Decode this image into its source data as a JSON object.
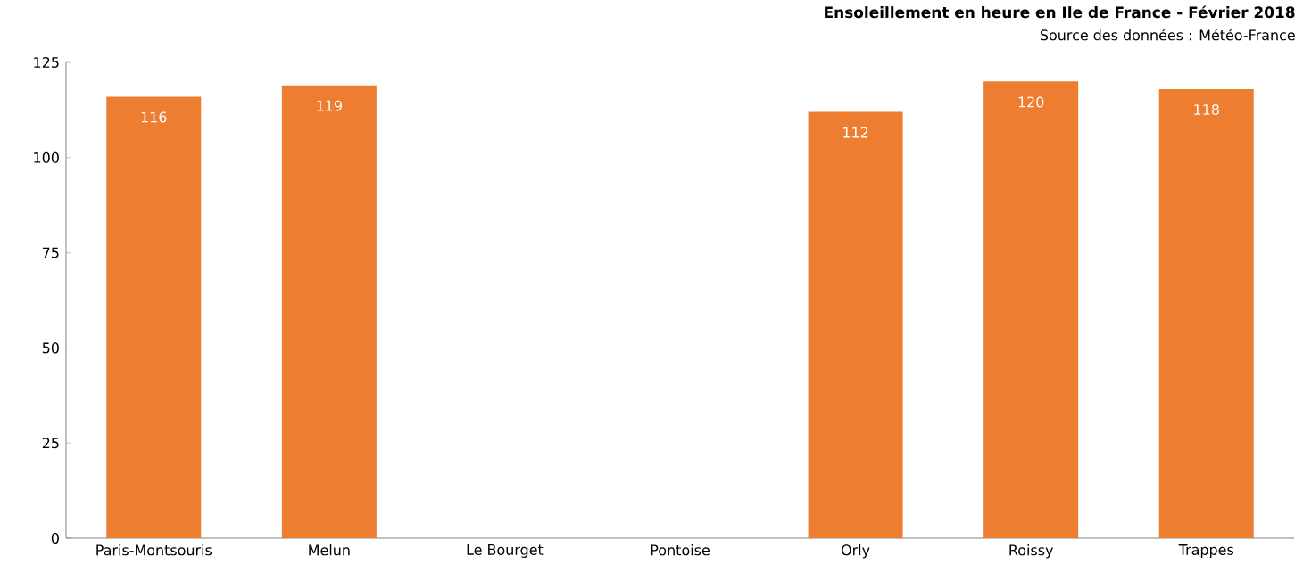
{
  "chart_data": {
    "type": "bar",
    "title": "Ensoleillement en heure en Ile de France - Février 2018",
    "subtitle": "Source des données : Météo-France",
    "categories": [
      "Paris-Montsouris",
      "Melun",
      "Le Bourget",
      "Pontoise",
      "Orly",
      "Roissy",
      "Trappes"
    ],
    "values": [
      116,
      119,
      null,
      null,
      112,
      120,
      118
    ],
    "color": "#ed7d31",
    "data_labels": true,
    "ylim": [
      0,
      125
    ],
    "yticks": [
      0,
      25,
      50,
      75,
      100,
      125
    ],
    "grid": false
  }
}
